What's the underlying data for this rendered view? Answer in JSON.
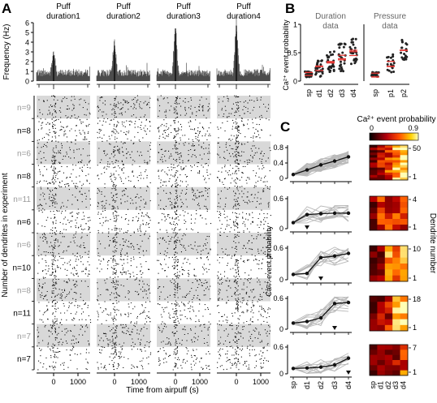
{
  "panels": {
    "A": "A",
    "B": "B",
    "C": "C"
  },
  "panelA": {
    "puff_titles": [
      [
        "Puff",
        "duration1"
      ],
      [
        "Puff",
        "duration2"
      ],
      [
        "Puff",
        "duration3"
      ],
      [
        "Puff",
        "duration4"
      ]
    ],
    "freq_ylabel": "Frequency (Hz)",
    "freq_ticks": [
      "0",
      "1",
      "2",
      "3",
      "4",
      "5",
      "6"
    ],
    "raster_ylabel": "Number of dendrites in experiment",
    "xlabel": "Time from airpuff (s)",
    "xticks": [
      "0",
      "1000"
    ],
    "groups": [
      {
        "label": "n=9",
        "shade": true
      },
      {
        "label": "n=8",
        "shade": false
      },
      {
        "label": "n=6",
        "shade": true
      },
      {
        "label": "n=8",
        "shade": false
      },
      {
        "label": "n=11",
        "shade": true
      },
      {
        "label": "n=6",
        "shade": false
      },
      {
        "label": "n=6",
        "shade": true
      },
      {
        "label": "n=10",
        "shade": false
      },
      {
        "label": "n=8",
        "shade": true
      },
      {
        "label": "n=11",
        "shade": false
      },
      {
        "label": "n=7",
        "shade": true
      },
      {
        "label": "n=7",
        "shade": false
      }
    ]
  },
  "panelB": {
    "ylabel": "Ca²⁺ event probability",
    "yticks": [
      "0",
      "0.5",
      "1"
    ],
    "duration_title": [
      "Duration",
      "data"
    ],
    "pressure_title": [
      "Pressure",
      "data"
    ],
    "duration_cats": [
      "sp",
      "d1",
      "d2",
      "d3",
      "d4"
    ],
    "pressure_cats": [
      "sp",
      "p1",
      "p2"
    ]
  },
  "panelC": {
    "ylabel": "Ca²⁺ event probability",
    "cbar_title": "Ca²⁺ event probability",
    "cbar_ticks": [
      "0",
      "0.9"
    ],
    "right_label": "Dendrite number",
    "xcats": [
      "sp",
      "d1",
      "d2",
      "d3",
      "d4"
    ],
    "rows": [
      {
        "yticks": [
          "0",
          "0.4",
          "0.8"
        ],
        "dn": [
          "50",
          "1"
        ],
        "means": [
          0.1,
          0.22,
          0.35,
          0.45,
          0.56
        ]
      },
      {
        "yticks": [
          "0",
          "0.6"
        ],
        "dn": [
          "4",
          "1"
        ],
        "means": [
          0.12,
          0.28,
          0.3,
          0.31,
          0.31
        ]
      },
      {
        "yticks": [
          "0",
          "0.6"
        ],
        "dn": [
          "10",
          "1"
        ],
        "means": [
          0.1,
          0.12,
          0.42,
          0.45,
          0.5
        ]
      },
      {
        "yticks": [
          "0",
          "0.6"
        ],
        "dn": [
          "18",
          "1"
        ],
        "means": [
          0.12,
          0.15,
          0.22,
          0.5,
          0.52
        ]
      },
      {
        "yticks": [
          "0",
          "0.6"
        ],
        "dn": [
          "7",
          "1"
        ],
        "means": [
          0.12,
          0.13,
          0.15,
          0.2,
          0.35
        ]
      }
    ]
  },
  "chart_data": [
    {
      "type": "scatter",
      "panel": "B",
      "title": "Duration data",
      "categories": [
        "sp",
        "d1",
        "d2",
        "d3",
        "d4"
      ],
      "ylabel": "Ca²⁺ event probability",
      "ylim": [
        0,
        1
      ],
      "medians": [
        0.12,
        0.22,
        0.32,
        0.42,
        0.5
      ]
    },
    {
      "type": "scatter",
      "panel": "B",
      "title": "Pressure data",
      "categories": [
        "sp",
        "p1",
        "p2"
      ],
      "ylim": [
        0,
        1
      ],
      "medians": [
        0.12,
        0.3,
        0.55
      ]
    },
    {
      "type": "line",
      "panel": "C",
      "categories": [
        "sp",
        "d1",
        "d2",
        "d3",
        "d4"
      ],
      "series": [
        {
          "values": [
            0.1,
            0.22,
            0.35,
            0.45,
            0.56
          ]
        },
        {
          "values": [
            0.12,
            0.28,
            0.3,
            0.31,
            0.31
          ]
        },
        {
          "values": [
            0.1,
            0.12,
            0.42,
            0.45,
            0.5
          ]
        },
        {
          "values": [
            0.12,
            0.15,
            0.22,
            0.5,
            0.52
          ]
        },
        {
          "values": [
            0.12,
            0.13,
            0.15,
            0.2,
            0.35
          ]
        }
      ]
    },
    {
      "type": "heatmap",
      "panel": "C",
      "colorbar": {
        "min": 0,
        "max": 0.9
      }
    }
  ]
}
